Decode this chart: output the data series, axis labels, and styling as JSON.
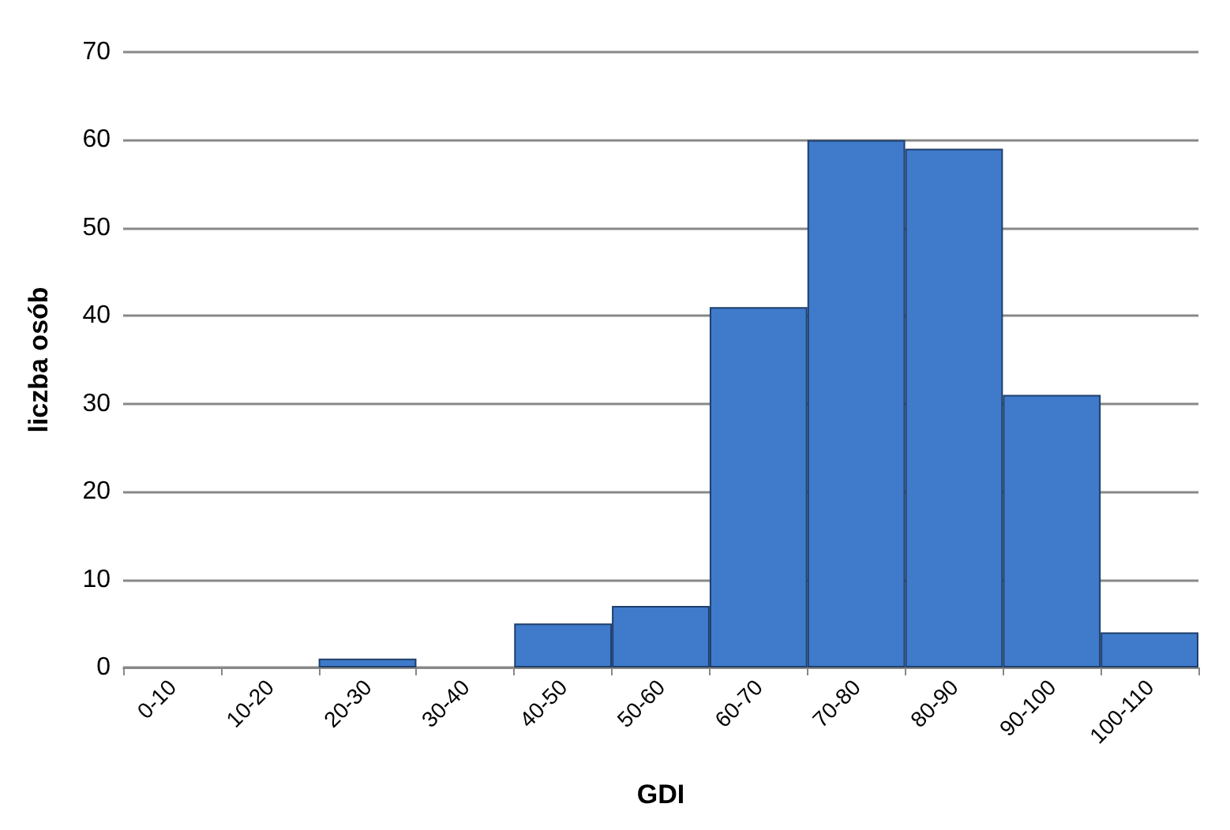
{
  "chart_data": {
    "type": "bar",
    "xlabel": "GDI",
    "ylabel": "liczba osób",
    "categories": [
      "0-10",
      "10-20",
      "20-30",
      "30-40",
      "40-50",
      "50-60",
      "60-70",
      "70-80",
      "80-90",
      "90-100",
      "100-110"
    ],
    "values": [
      0,
      0,
      1,
      0,
      5,
      7,
      41,
      60,
      59,
      31,
      4
    ],
    "color": "#3f7acb",
    "ylim": [
      0,
      70
    ],
    "yticks": [
      0,
      10,
      20,
      30,
      40,
      50,
      60,
      70
    ],
    "grid": "y"
  }
}
